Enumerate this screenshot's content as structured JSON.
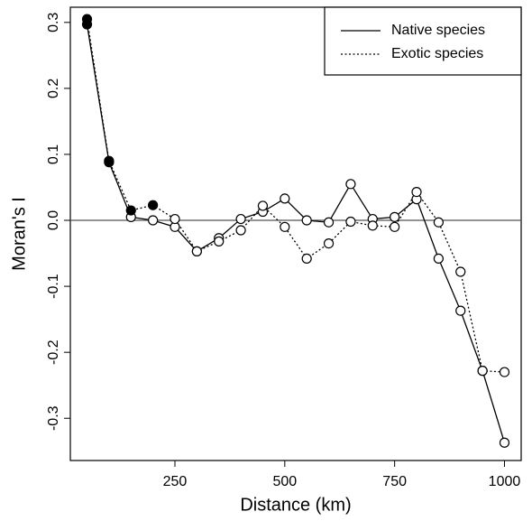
{
  "chart_data": {
    "type": "line",
    "x_label": "Distance (km)",
    "y_label": "Moran's I",
    "x": [
      50,
      100,
      150,
      200,
      250,
      300,
      350,
      400,
      450,
      500,
      550,
      600,
      650,
      700,
      750,
      800,
      850,
      900,
      950,
      1000
    ],
    "series": [
      {
        "name": "Native species",
        "color": "#000000",
        "line_style": "solid",
        "values": [
          0.297,
          0.088,
          0.005,
          0.0,
          -0.01,
          -0.047,
          -0.027,
          0.002,
          0.013,
          0.033,
          0.0,
          -0.003,
          0.055,
          0.002,
          0.005,
          0.032,
          -0.058,
          -0.137,
          -0.228,
          -0.337
        ],
        "marker_colors": [
          "#000000",
          "#000000",
          "#ffffff",
          "#ffffff",
          "#ffffff",
          "#ffffff",
          "#ffffff",
          "#ffffff",
          "#ffffff",
          "#ffffff",
          "#ffffff",
          "#ffffff",
          "#ffffff",
          "#ffffff",
          "#ffffff",
          "#ffffff",
          "#ffffff",
          "#ffffff",
          "#ffffff",
          "#ffffff"
        ]
      },
      {
        "name": "Exotic species",
        "color": "#000000",
        "line_style": "dotted",
        "values": [
          0.305,
          0.09,
          0.015,
          0.023,
          0.002,
          -0.047,
          -0.032,
          -0.015,
          0.022,
          -0.01,
          -0.058,
          -0.035,
          -0.002,
          -0.008,
          -0.01,
          0.043,
          -0.003,
          -0.078,
          -0.228,
          -0.23
        ],
        "marker_colors": [
          "#000000",
          "#000000",
          "#000000",
          "#000000",
          "#ffffff",
          "#ffffff",
          "#ffffff",
          "#ffffff",
          "#ffffff",
          "#ffffff",
          "#ffffff",
          "#ffffff",
          "#ffffff",
          "#ffffff",
          "#ffffff",
          "#ffffff",
          "#ffffff",
          "#ffffff",
          "#ffffff",
          "#ffffff"
        ]
      }
    ],
    "xlim": [
      12,
      1038
    ],
    "ylim": [
      -0.364,
      0.323
    ],
    "xticks": [
      250,
      500,
      750,
      1000
    ],
    "yticks": [
      -0.3,
      -0.2,
      -0.1,
      {
        "value": 0,
        "label": "0.0"
      },
      0.1,
      0.2,
      0.3
    ],
    "hline": 0,
    "grid": false,
    "legend_position": "top-right"
  }
}
